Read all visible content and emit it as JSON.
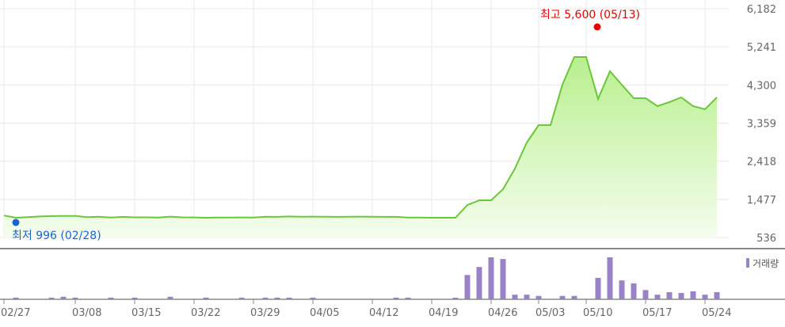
{
  "chart_data": {
    "type": "area",
    "y_axis": {
      "position": "right",
      "ticks": [
        536,
        1477,
        2418,
        3359,
        4300,
        5241,
        6182
      ],
      "range": [
        536,
        6182
      ]
    },
    "x_axis": {
      "ticks": [
        {
          "label": "02/27",
          "index": 0
        },
        {
          "label": "03/08",
          "index": 6
        },
        {
          "label": "03/15",
          "index": 11
        },
        {
          "label": "03/22",
          "index": 16
        },
        {
          "label": "03/29",
          "index": 21
        },
        {
          "label": "04/05",
          "index": 26
        },
        {
          "label": "04/12",
          "index": 31
        },
        {
          "label": "04/19",
          "index": 36
        },
        {
          "label": "04/26",
          "index": 41
        },
        {
          "label": "05/03",
          "index": 45
        },
        {
          "label": "05/10",
          "index": 49
        },
        {
          "label": "05/17",
          "index": 54
        },
        {
          "label": "05/24",
          "index": 59
        }
      ]
    },
    "grid": true,
    "price_values": [
      1080,
      1024,
      1040,
      1055,
      1065,
      1068,
      1068,
      1040,
      1048,
      1030,
      1045,
      1035,
      1035,
      1030,
      1052,
      1035,
      1032,
      1025,
      1028,
      1030,
      1032,
      1030,
      1050,
      1045,
      1055,
      1050,
      1052,
      1048,
      1046,
      1050,
      1052,
      1048,
      1046,
      1045,
      1030,
      1028,
      1024,
      1024,
      1024,
      1337,
      1454,
      1454,
      1728,
      2236,
      2880,
      3310,
      3310,
      4307,
      4990,
      4990,
      3955,
      4639,
      4307,
      3974,
      3974,
      3779,
      3877,
      3994,
      3779,
      3701,
      3994
    ],
    "high": {
      "label": "최고 5,600 (05/13)",
      "value": 5600,
      "index": 50,
      "color": "#e60000"
    },
    "low": {
      "label": "최저 996 (02/28)",
      "value": 996,
      "index": 1,
      "color": "#1a66cc"
    },
    "volume": {
      "legend": "거래량",
      "color": "#9a82c8",
      "bars": [
        {
          "index": 1,
          "value": 4
        },
        {
          "index": 4,
          "value": 4
        },
        {
          "index": 5,
          "value": 6
        },
        {
          "index": 6,
          "value": 4
        },
        {
          "index": 9,
          "value": 4
        },
        {
          "index": 11,
          "value": 4
        },
        {
          "index": 14,
          "value": 6
        },
        {
          "index": 17,
          "value": 4
        },
        {
          "index": 20,
          "value": 4
        },
        {
          "index": 22,
          "value": 4
        },
        {
          "index": 23,
          "value": 4
        },
        {
          "index": 24,
          "value": 4
        },
        {
          "index": 26,
          "value": 4
        },
        {
          "index": 33,
          "value": 4
        },
        {
          "index": 34,
          "value": 4
        },
        {
          "index": 38,
          "value": 3
        },
        {
          "index": 39,
          "value": 58
        },
        {
          "index": 40,
          "value": 77
        },
        {
          "index": 41,
          "value": 100
        },
        {
          "index": 42,
          "value": 96
        },
        {
          "index": 43,
          "value": 11
        },
        {
          "index": 44,
          "value": 11
        },
        {
          "index": 45,
          "value": 8
        },
        {
          "index": 47,
          "value": 8
        },
        {
          "index": 48,
          "value": 8
        },
        {
          "index": 50,
          "value": 51
        },
        {
          "index": 51,
          "value": 100
        },
        {
          "index": 52,
          "value": 45
        },
        {
          "index": 53,
          "value": 38
        },
        {
          "index": 54,
          "value": 22
        },
        {
          "index": 55,
          "value": 11
        },
        {
          "index": 56,
          "value": 17
        },
        {
          "index": 57,
          "value": 15
        },
        {
          "index": 58,
          "value": 19
        },
        {
          "index": 59,
          "value": 11
        },
        {
          "index": 60,
          "value": 17
        }
      ]
    },
    "colors": {
      "line": "#6cc63a",
      "fill_top": "#b8ef8e",
      "fill_bottom": "#f4fdee",
      "grid": "#e8e8e8",
      "divider": "#888888"
    }
  }
}
